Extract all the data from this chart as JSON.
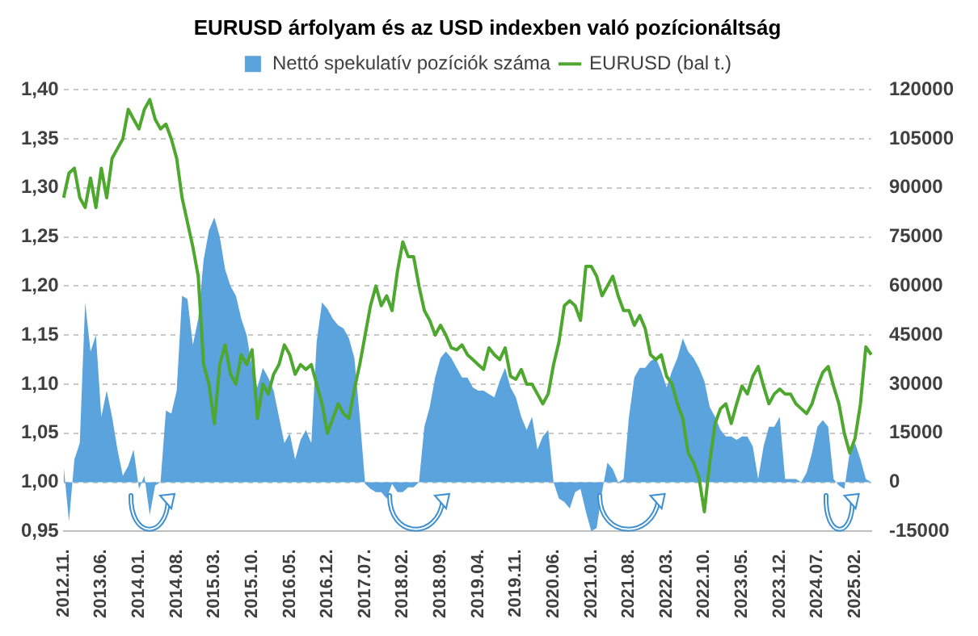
{
  "chart_data": {
    "type": "line",
    "title": "EURUSD árfolyam és az USD indexben való pozícionáltság",
    "categories": [
      "2012.11.",
      null,
      null,
      null,
      null,
      null,
      null,
      "2013.06.",
      null,
      null,
      null,
      null,
      null,
      null,
      "2014.01.",
      null,
      null,
      null,
      null,
      null,
      null,
      "2014.08.",
      null,
      null,
      null,
      null,
      null,
      null,
      "2015.03.",
      null,
      null,
      null,
      null,
      null,
      null,
      "2015.10.",
      null,
      null,
      null,
      null,
      null,
      null,
      "2016.05.",
      null,
      null,
      null,
      null,
      null,
      null,
      "2016.12.",
      null,
      null,
      null,
      null,
      null,
      null,
      "2017.07.",
      null,
      null,
      null,
      null,
      null,
      null,
      "2018.02.",
      null,
      null,
      null,
      null,
      null,
      null,
      "2018.09.",
      null,
      null,
      null,
      null,
      null,
      null,
      "2019.04.",
      null,
      null,
      null,
      null,
      null,
      null,
      "2019.11.",
      null,
      null,
      null,
      null,
      null,
      null,
      "2020.06.",
      null,
      null,
      null,
      null,
      null,
      null,
      "2021.01.",
      null,
      null,
      null,
      null,
      null,
      null,
      "2021.08.",
      null,
      null,
      null,
      null,
      null,
      null,
      "2022.03.",
      null,
      null,
      null,
      null,
      null,
      null,
      "2022.10.",
      null,
      null,
      null,
      null,
      null,
      null,
      "2023.05.",
      null,
      null,
      null,
      null,
      null,
      null,
      "2023.12.",
      null,
      null,
      null,
      null,
      null,
      null,
      "2024.07.",
      null,
      null,
      null,
      null,
      null,
      null,
      "2025.02.",
      null,
      null,
      null
    ],
    "series": [
      {
        "name": "Nettó spekulatív pozíciók száma",
        "type": "area",
        "axis": "y2",
        "color": "#5ba3dc",
        "values": [
          5000,
          -12000,
          7000,
          12000,
          55000,
          40000,
          45000,
          20000,
          28000,
          20000,
          10000,
          2000,
          5000,
          10000,
          -2000,
          2000,
          -10000,
          -1000,
          0,
          22000,
          21000,
          28000,
          57000,
          56000,
          42000,
          50000,
          68000,
          77000,
          81000,
          75000,
          65000,
          60000,
          57000,
          50000,
          45000,
          35000,
          29000,
          35000,
          32000,
          28000,
          20000,
          12000,
          15000,
          7000,
          13000,
          16000,
          12000,
          43000,
          55000,
          53000,
          50000,
          48000,
          47000,
          44000,
          38000,
          20000,
          -500,
          -2000,
          -3000,
          -3000,
          -5000,
          -500,
          -3000,
          -3000,
          -1500,
          -1500,
          0,
          17000,
          23000,
          32000,
          38000,
          40000,
          38000,
          35000,
          32000,
          32000,
          29000,
          28000,
          28000,
          27000,
          26000,
          31000,
          35000,
          29000,
          26000,
          20000,
          16000,
          20000,
          10000,
          14000,
          16000,
          0,
          -5000,
          -6000,
          -8000,
          -3000,
          -2000,
          -9000,
          -15000,
          -14000,
          -3000,
          6000,
          4000,
          0,
          1000,
          20000,
          32000,
          35000,
          35000,
          37000,
          38000,
          34000,
          29000,
          34000,
          38000,
          44000,
          40000,
          38000,
          35000,
          31000,
          23000,
          20000,
          16000,
          14000,
          14000,
          13000,
          14000,
          14000,
          11000,
          1000,
          11000,
          17000,
          17000,
          20000,
          1000,
          1000,
          1000,
          0,
          3000,
          9000,
          17000,
          19000,
          17000,
          1000,
          -1000,
          -2000,
          9000,
          12000,
          7000,
          1000,
          0
        ]
      },
      {
        "name": "EURUSD (bal t.)",
        "type": "line",
        "color": "#4ea72e",
        "values": [
          1.29,
          1.315,
          1.32,
          1.29,
          1.28,
          1.31,
          1.28,
          1.32,
          1.29,
          1.33,
          1.34,
          1.35,
          1.38,
          1.37,
          1.36,
          1.38,
          1.39,
          1.37,
          1.36,
          1.365,
          1.35,
          1.33,
          1.29,
          1.265,
          1.24,
          1.21,
          1.12,
          1.1,
          1.06,
          1.12,
          1.14,
          1.11,
          1.1,
          1.13,
          1.12,
          1.135,
          1.065,
          1.1,
          1.09,
          1.11,
          1.12,
          1.14,
          1.13,
          1.11,
          1.12,
          1.115,
          1.12,
          1.1,
          1.08,
          1.05,
          1.065,
          1.08,
          1.07,
          1.065,
          1.095,
          1.12,
          1.15,
          1.18,
          1.2,
          1.18,
          1.19,
          1.175,
          1.215,
          1.245,
          1.23,
          1.23,
          1.2,
          1.175,
          1.165,
          1.15,
          1.16,
          1.15,
          1.137,
          1.135,
          1.14,
          1.13,
          1.125,
          1.12,
          1.115,
          1.137,
          1.13,
          1.125,
          1.137,
          1.108,
          1.105,
          1.115,
          1.1,
          1.1,
          1.09,
          1.08,
          1.09,
          1.12,
          1.143,
          1.18,
          1.185,
          1.18,
          1.165,
          1.22,
          1.22,
          1.21,
          1.19,
          1.2,
          1.21,
          1.19,
          1.175,
          1.175,
          1.16,
          1.17,
          1.157,
          1.13,
          1.125,
          1.13,
          1.108,
          1.1,
          1.08,
          1.065,
          1.03,
          1.02,
          1.005,
          0.97,
          1.02,
          1.06,
          1.075,
          1.08,
          1.06,
          1.08,
          1.098,
          1.09,
          1.108,
          1.118,
          1.098,
          1.08,
          1.09,
          1.095,
          1.09,
          1.09,
          1.08,
          1.075,
          1.07,
          1.08,
          1.098,
          1.112,
          1.118,
          1.098,
          1.08,
          1.05,
          1.03,
          1.045,
          1.08,
          1.138,
          1.13
        ]
      }
    ],
    "ylim": [
      0.95,
      1.4
    ],
    "yticks": [
      {
        "value": 0.95,
        "label": "0,95"
      },
      {
        "value": 1.0,
        "label": "1,00"
      },
      {
        "value": 1.05,
        "label": "1,05"
      },
      {
        "value": 1.1,
        "label": "1,10"
      },
      {
        "value": 1.15,
        "label": "1,15"
      },
      {
        "value": 1.2,
        "label": "1,20"
      },
      {
        "value": 1.25,
        "label": "1,25"
      },
      {
        "value": 1.3,
        "label": "1,30"
      },
      {
        "value": 1.35,
        "label": "1,35"
      },
      {
        "value": 1.4,
        "label": "1,40"
      }
    ],
    "y2lim": [
      -15000,
      120000
    ],
    "y2ticks": [
      -15000,
      0,
      15000,
      30000,
      45000,
      60000,
      75000,
      90000,
      105000,
      120000
    ],
    "grid": "y",
    "legend": "top"
  }
}
